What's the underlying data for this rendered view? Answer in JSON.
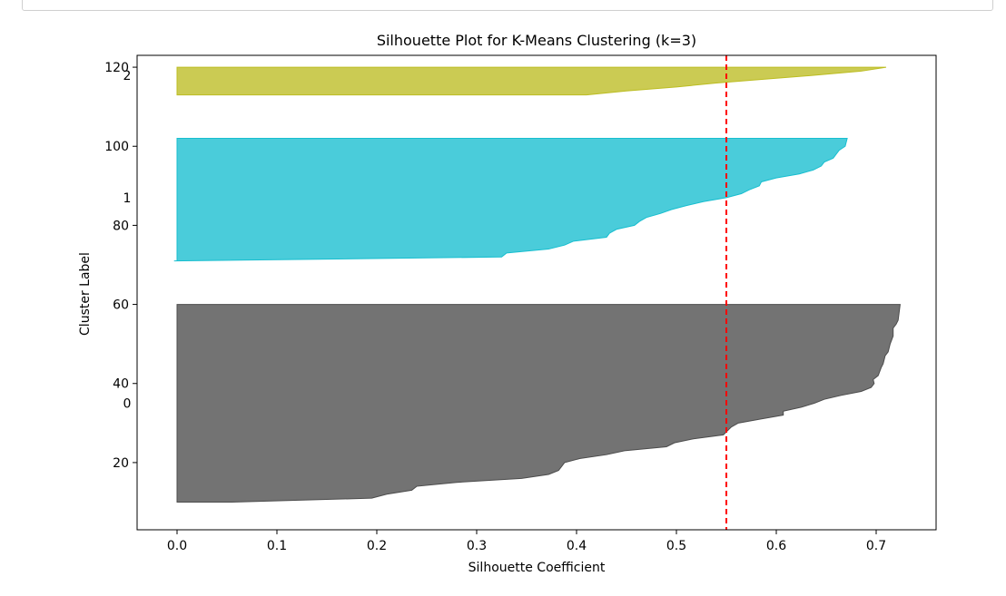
{
  "chart_data": {
    "type": "area",
    "title": "Silhouette Plot for K-Means Clustering (k=3)",
    "xlabel": "Silhouette Coefficient",
    "ylabel": "Cluster Label",
    "xlim": [
      -0.04,
      0.76
    ],
    "ylim": [
      3,
      123
    ],
    "x_ticks": [
      "0.0",
      "0.1",
      "0.2",
      "0.3",
      "0.4",
      "0.5",
      "0.6",
      "0.7"
    ],
    "y_ticks": [
      "20",
      "40",
      "60",
      "80",
      "100",
      "120"
    ],
    "x_tick_values": [
      0.0,
      0.1,
      0.2,
      0.3,
      0.4,
      0.5,
      0.6,
      0.7
    ],
    "y_tick_values": [
      20,
      40,
      60,
      80,
      100,
      120
    ],
    "average_silhouette": 0.55,
    "average_line_color": "#ff0000",
    "cluster_text_labels": [
      {
        "text": "0",
        "x": -0.05,
        "y": 35
      },
      {
        "text": "1",
        "x": -0.05,
        "y": 87
      },
      {
        "text": "2",
        "x": -0.05,
        "y": 118
      }
    ],
    "series": [
      {
        "cluster": 0,
        "color": "#4c4c4c",
        "y_start": 10,
        "y_end": 60,
        "points": [
          [
            0.0,
            10
          ],
          [
            0.055,
            10
          ],
          [
            0.195,
            11
          ],
          [
            0.21,
            12
          ],
          [
            0.235,
            13
          ],
          [
            0.24,
            14
          ],
          [
            0.28,
            15
          ],
          [
            0.345,
            16
          ],
          [
            0.372,
            17
          ],
          [
            0.382,
            18
          ],
          [
            0.385,
            19
          ],
          [
            0.388,
            20
          ],
          [
            0.403,
            21
          ],
          [
            0.43,
            22
          ],
          [
            0.448,
            23
          ],
          [
            0.49,
            24
          ],
          [
            0.498,
            25
          ],
          [
            0.517,
            26
          ],
          [
            0.547,
            27
          ],
          [
            0.551,
            28
          ],
          [
            0.555,
            29
          ],
          [
            0.562,
            30
          ],
          [
            0.584,
            31
          ],
          [
            0.607,
            32
          ],
          [
            0.607,
            33
          ],
          [
            0.625,
            34
          ],
          [
            0.638,
            35
          ],
          [
            0.648,
            36
          ],
          [
            0.665,
            37
          ],
          [
            0.685,
            38
          ],
          [
            0.695,
            39
          ],
          [
            0.698,
            40
          ],
          [
            0.697,
            41
          ],
          [
            0.702,
            42
          ],
          [
            0.705,
            44
          ],
          [
            0.707,
            45
          ],
          [
            0.709,
            47
          ],
          [
            0.712,
            48
          ],
          [
            0.714,
            50
          ],
          [
            0.717,
            52
          ],
          [
            0.717,
            54
          ],
          [
            0.72,
            55
          ],
          [
            0.722,
            56
          ],
          [
            0.723,
            58
          ],
          [
            0.724,
            60
          ]
        ]
      },
      {
        "cluster": 1,
        "color": "#17becf",
        "y_start": 71,
        "y_end": 102,
        "points": [
          [
            -0.003,
            71
          ],
          [
            0.325,
            72
          ],
          [
            0.33,
            73
          ],
          [
            0.372,
            74
          ],
          [
            0.388,
            75
          ],
          [
            0.397,
            76
          ],
          [
            0.43,
            77
          ],
          [
            0.433,
            78
          ],
          [
            0.44,
            79
          ],
          [
            0.458,
            80
          ],
          [
            0.463,
            81
          ],
          [
            0.47,
            82
          ],
          [
            0.484,
            83
          ],
          [
            0.495,
            84
          ],
          [
            0.51,
            85
          ],
          [
            0.527,
            86
          ],
          [
            0.55,
            87
          ],
          [
            0.565,
            88
          ],
          [
            0.573,
            89
          ],
          [
            0.583,
            90
          ],
          [
            0.585,
            91
          ],
          [
            0.6,
            92
          ],
          [
            0.623,
            93
          ],
          [
            0.637,
            94
          ],
          [
            0.645,
            95
          ],
          [
            0.648,
            96
          ],
          [
            0.657,
            97
          ],
          [
            0.66,
            98
          ],
          [
            0.663,
            99
          ],
          [
            0.669,
            100
          ],
          [
            0.67,
            101
          ],
          [
            0.671,
            102
          ]
        ]
      },
      {
        "cluster": 2,
        "color": "#bcbd22",
        "y_start": 113,
        "y_end": 120,
        "points": [
          [
            0.0,
            113
          ],
          [
            0.41,
            113
          ],
          [
            0.45,
            114
          ],
          [
            0.5,
            115
          ],
          [
            0.54,
            116
          ],
          [
            0.59,
            117
          ],
          [
            0.64,
            118
          ],
          [
            0.685,
            119
          ],
          [
            0.71,
            120
          ]
        ]
      }
    ]
  }
}
